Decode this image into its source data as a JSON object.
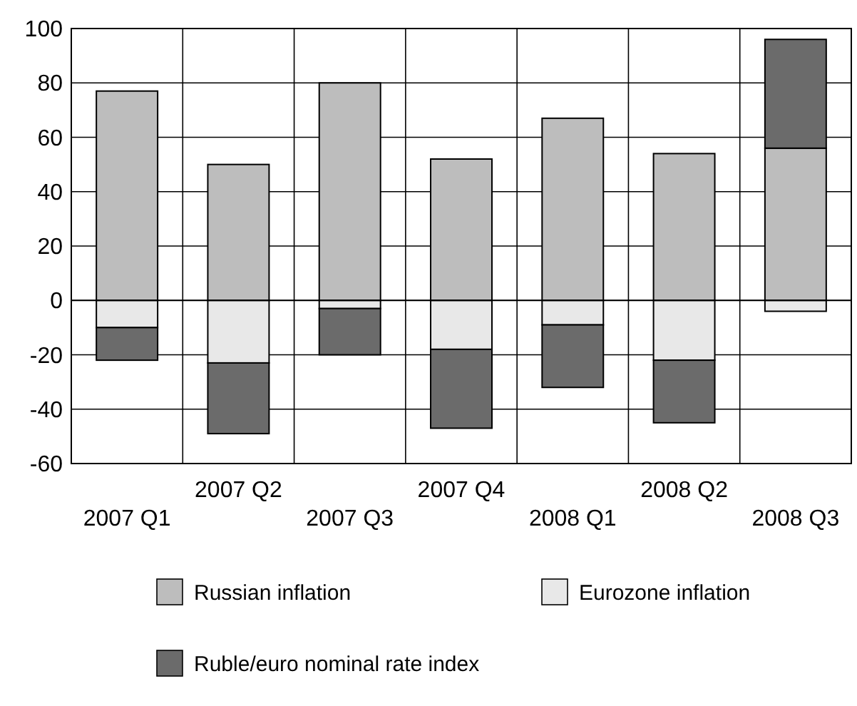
{
  "chart_data": {
    "type": "bar",
    "stacked": true,
    "categories": [
      "2007 Q1",
      "2007 Q2",
      "2007 Q3",
      "2007 Q4",
      "2008 Q1",
      "2008 Q2",
      "2008 Q3"
    ],
    "series": [
      {
        "name": "Russian inflation",
        "color": "#bdbdbd",
        "values": [
          77,
          50,
          80,
          52,
          67,
          54,
          56
        ]
      },
      {
        "name": "Eurozone inflation",
        "color": "#e8e8e8",
        "values": [
          -10,
          -23,
          -3,
          -18,
          -9,
          -22,
          -4
        ]
      },
      {
        "name": "Ruble/euro nominal rate index",
        "color": "#6b6b6b",
        "values": [
          -12,
          -26,
          -17,
          -29,
          -23,
          -23,
          40
        ]
      }
    ],
    "ylim": [
      -60,
      100
    ],
    "yticks": [
      -60,
      -40,
      -20,
      0,
      20,
      40,
      60,
      80,
      100
    ],
    "grid": true,
    "legend": "bottom"
  }
}
